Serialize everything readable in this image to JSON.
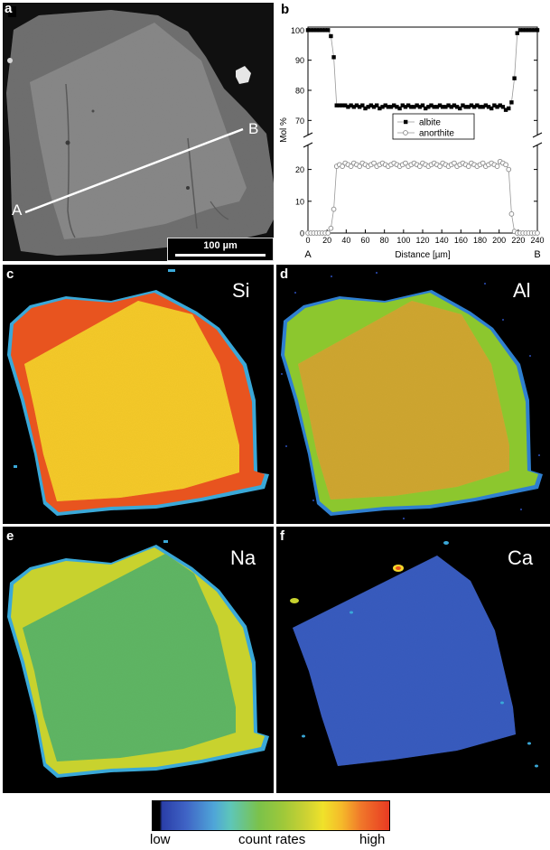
{
  "panels": {
    "a": {
      "letter": "a",
      "point_a": "A",
      "point_b": "B",
      "scalebar": "100 µm"
    },
    "b": {
      "letter": "b"
    },
    "c": {
      "letter": "c",
      "element": "Si"
    },
    "d": {
      "letter": "d",
      "element": "Al"
    },
    "e": {
      "letter": "e",
      "element": "Na"
    },
    "f": {
      "letter": "f",
      "element": "Ca"
    }
  },
  "chart_data": {
    "type": "scatter",
    "xlabel": "Distance [µm]",
    "ylabel": "Mol %",
    "xlim": [
      0,
      240
    ],
    "x_ticks": [
      0,
      20,
      40,
      60,
      80,
      100,
      120,
      140,
      160,
      180,
      200,
      220,
      240
    ],
    "y_ticks": [
      0,
      10,
      20,
      70,
      80,
      90,
      100
    ],
    "broken_y_axis": true,
    "y_break": [
      25,
      68
    ],
    "endpoint_labels": {
      "left": "A",
      "right": "B"
    },
    "legend": {
      "position": "upper-right",
      "entries": [
        "albite",
        "anorthite"
      ]
    },
    "series": [
      {
        "name": "albite",
        "marker": "filled-square",
        "color": "#000000",
        "x": [
          0,
          3,
          6,
          9,
          12,
          15,
          18,
          21,
          24,
          27,
          30,
          33,
          36,
          39,
          42,
          45,
          48,
          51,
          54,
          57,
          60,
          63,
          66,
          69,
          72,
          75,
          78,
          81,
          84,
          87,
          90,
          93,
          96,
          99,
          102,
          105,
          108,
          111,
          114,
          117,
          120,
          123,
          126,
          129,
          132,
          135,
          138,
          141,
          144,
          147,
          150,
          153,
          156,
          159,
          162,
          165,
          168,
          171,
          174,
          177,
          180,
          183,
          186,
          189,
          192,
          195,
          198,
          201,
          204,
          207,
          210,
          213,
          216,
          219,
          222,
          225,
          228,
          231,
          234,
          237,
          240
        ],
        "y": [
          100,
          100,
          100,
          100,
          100,
          100,
          100,
          100,
          98,
          91,
          75,
          75,
          75,
          75,
          74.5,
          75,
          74.5,
          75,
          74.5,
          75,
          74,
          74.5,
          75,
          74.5,
          75,
          74,
          74.5,
          75,
          74.5,
          74.5,
          75,
          74.5,
          74,
          75,
          74.5,
          75,
          74.5,
          74.5,
          75,
          74.5,
          75,
          74,
          74.5,
          75,
          74.5,
          74.5,
          75,
          74.5,
          74.5,
          75,
          74.5,
          75,
          74.5,
          74,
          75,
          74.5,
          74.5,
          75,
          74.5,
          75,
          74.5,
          74.5,
          75,
          74.5,
          74,
          75,
          74.5,
          75,
          74.5,
          73.5,
          74,
          76,
          84,
          99,
          100,
          100,
          100,
          100,
          100,
          100,
          100
        ]
      },
      {
        "name": "anorthite",
        "marker": "open-circle",
        "color": "#888888",
        "x": [
          0,
          3,
          6,
          9,
          12,
          15,
          18,
          21,
          24,
          27,
          30,
          33,
          36,
          39,
          42,
          45,
          48,
          51,
          54,
          57,
          60,
          63,
          66,
          69,
          72,
          75,
          78,
          81,
          84,
          87,
          90,
          93,
          96,
          99,
          102,
          105,
          108,
          111,
          114,
          117,
          120,
          123,
          126,
          129,
          132,
          135,
          138,
          141,
          144,
          147,
          150,
          153,
          156,
          159,
          162,
          165,
          168,
          171,
          174,
          177,
          180,
          183,
          186,
          189,
          192,
          195,
          198,
          201,
          204,
          207,
          210,
          213,
          216,
          219,
          222,
          225,
          228,
          231,
          234,
          237,
          240
        ],
        "y": [
          0,
          0,
          0,
          0,
          0,
          0,
          0,
          0,
          1.5,
          7.5,
          21,
          21.5,
          21,
          22,
          21.5,
          21,
          22,
          21.5,
          21,
          22,
          21.5,
          21,
          21.5,
          22,
          21,
          21.5,
          22,
          21.5,
          21,
          21.5,
          22,
          21.5,
          21,
          21.5,
          22,
          21,
          21.5,
          22,
          21.5,
          21,
          22,
          21.5,
          21,
          21.5,
          22,
          21.5,
          21,
          22,
          21.5,
          21,
          21.5,
          22,
          21,
          21.5,
          22,
          21.5,
          21,
          22,
          21.5,
          21,
          21.5,
          22,
          21,
          21.5,
          22,
          21.5,
          21,
          22.5,
          22,
          21.5,
          20,
          6,
          0.5,
          0,
          0,
          0,
          0,
          0,
          0,
          0,
          0
        ]
      }
    ]
  },
  "colorbar": {
    "low": "low",
    "mid": "count rates",
    "high": "high"
  },
  "colors": {
    "si_rim": "#e8541f",
    "si_core": "#f5d62a",
    "al_rim": "#8cc72e",
    "al_core": "#d4c231",
    "na_rim": "#c8d22e",
    "na_core": "#6cba3e",
    "ca_core": "#3f63c5",
    "background": "#000000",
    "bse_rim": "#6a6a6a",
    "bse_core": "#8a8a8a"
  }
}
